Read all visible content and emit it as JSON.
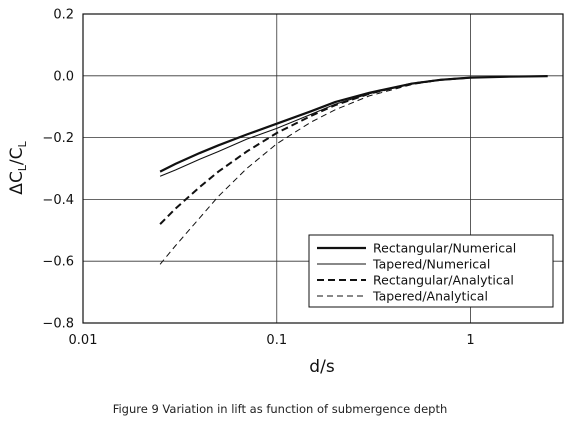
{
  "chart_data": {
    "type": "line",
    "xscale": "log",
    "xlim": [
      0.01,
      3.0
    ],
    "ylim": [
      -0.8,
      0.2
    ],
    "grid": true,
    "legend_position": "bottom-right",
    "xlabel": "d/s",
    "ylabel": {
      "base": "ΔC",
      "sub1": "L",
      "slash": "/C",
      "sub2": "L"
    },
    "caption": "Figure 9 Variation in lift as function of submergence depth",
    "x_ticks": [
      {
        "value": 0.01,
        "label": "0.01"
      },
      {
        "value": 0.1,
        "label": "0.1"
      },
      {
        "value": 1,
        "label": "1"
      }
    ],
    "y_ticks": [
      {
        "value": 0.2,
        "label": "0.2"
      },
      {
        "value": 0.0,
        "label": "0.0"
      },
      {
        "value": -0.2,
        "label": "−0.2"
      },
      {
        "value": -0.4,
        "label": "−0.4"
      },
      {
        "value": -0.6,
        "label": "−0.6"
      },
      {
        "value": -0.8,
        "label": "−0.8"
      }
    ],
    "series": [
      {
        "name": "Rectangular/Numerical",
        "style": "solid-thick",
        "x": [
          0.025,
          0.03,
          0.04,
          0.05,
          0.07,
          0.1,
          0.15,
          0.2,
          0.3,
          0.5,
          0.7,
          1.0,
          1.5,
          2.0,
          2.5
        ],
        "y": [
          -0.31,
          -0.285,
          -0.25,
          -0.225,
          -0.19,
          -0.155,
          -0.115,
          -0.085,
          -0.055,
          -0.025,
          -0.013,
          -0.006,
          -0.003,
          -0.002,
          -0.001
        ]
      },
      {
        "name": "Tapered/Numerical",
        "style": "solid-thin",
        "x": [
          0.025,
          0.03,
          0.04,
          0.05,
          0.07,
          0.1,
          0.15,
          0.2,
          0.3,
          0.5,
          0.7,
          1.0,
          1.5,
          2.0,
          2.5
        ],
        "y": [
          -0.325,
          -0.305,
          -0.27,
          -0.245,
          -0.205,
          -0.17,
          -0.125,
          -0.092,
          -0.058,
          -0.026,
          -0.013,
          -0.006,
          -0.003,
          -0.002,
          -0.001
        ]
      },
      {
        "name": "Rectangular/Analytical",
        "style": "dashed-thick",
        "x": [
          0.025,
          0.03,
          0.04,
          0.05,
          0.07,
          0.1,
          0.15,
          0.2,
          0.3,
          0.5,
          0.7,
          1.0
        ],
        "y": [
          -0.48,
          -0.43,
          -0.36,
          -0.31,
          -0.245,
          -0.185,
          -0.13,
          -0.095,
          -0.058,
          -0.025,
          -0.013,
          -0.006
        ]
      },
      {
        "name": "Tapered/Analytical",
        "style": "dashed-thin",
        "x": [
          0.025,
          0.03,
          0.04,
          0.05,
          0.07,
          0.1,
          0.15,
          0.2,
          0.3,
          0.5,
          0.7,
          1.0
        ],
        "y": [
          -0.61,
          -0.55,
          -0.46,
          -0.39,
          -0.3,
          -0.22,
          -0.15,
          -0.11,
          -0.065,
          -0.028,
          -0.014,
          -0.007
        ]
      }
    ]
  }
}
